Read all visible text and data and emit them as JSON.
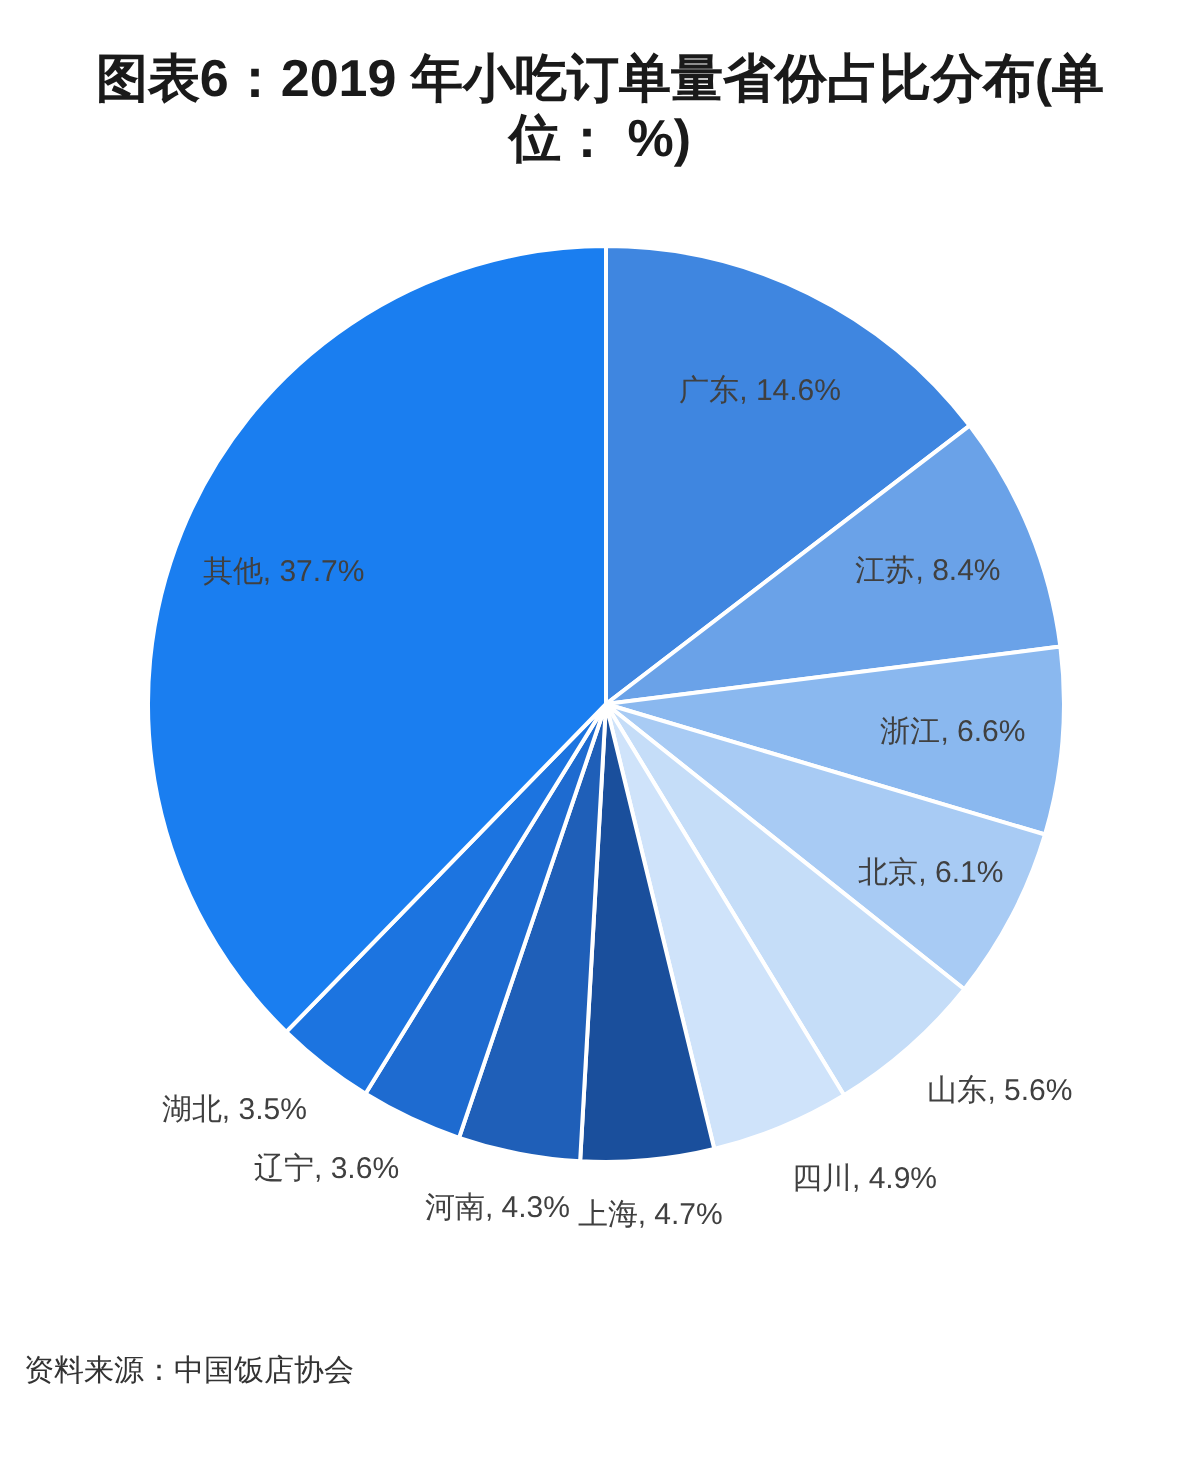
{
  "chart_data": {
    "type": "pie",
    "title": "图表6：2019 年小吃订单量省份占比分布(单位： %)",
    "categories": [
      "广东",
      "江苏",
      "浙江",
      "北京",
      "山东",
      "四川",
      "上海",
      "河南",
      "辽宁",
      "湖北",
      "其他"
    ],
    "values": [
      14.6,
      8.4,
      6.6,
      6.1,
      5.6,
      4.9,
      4.7,
      4.3,
      3.6,
      3.5,
      37.7
    ],
    "colors": [
      "#3f86e0",
      "#6aa2e8",
      "#8ab8ef",
      "#a8cbf4",
      "#c5ddf8",
      "#cfe3fa",
      "#1a4f9c",
      "#1f5fb8",
      "#1e6bd0",
      "#1c74e0",
      "#1a7ef0"
    ],
    "value_labels": [
      "14.6%",
      "8.4%",
      "6.6%",
      "6.1%",
      "5.6%",
      "4.9%",
      "4.7%",
      "4.3%",
      "3.6%",
      "3.5%",
      "37.7%"
    ],
    "annotations": [
      "资料来源：中国饭店协会"
    ]
  }
}
